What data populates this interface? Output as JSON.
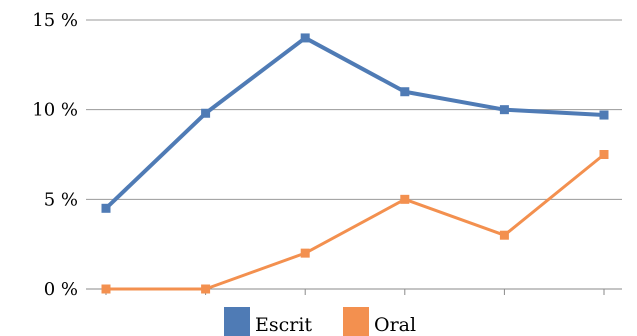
{
  "chart_data": {
    "type": "line",
    "x": [
      1,
      2,
      3,
      4,
      5,
      6
    ],
    "ylim": [
      0,
      15
    ],
    "yticks": [
      {
        "value": 0,
        "label": "0 %"
      },
      {
        "value": 5,
        "label": "5 %"
      },
      {
        "value": 10,
        "label": "10 %"
      },
      {
        "value": 15,
        "label": "15 %"
      }
    ],
    "grid": true,
    "legend_position": "bottom",
    "series": [
      {
        "name": "Escrit",
        "color": "#4f7bb5",
        "values": [
          4.5,
          9.8,
          14.0,
          11.0,
          10.0,
          9.7
        ]
      },
      {
        "name": "Oral",
        "color": "#f3904f",
        "values": [
          0.0,
          0.0,
          2.0,
          5.0,
          3.0,
          7.5
        ]
      }
    ]
  }
}
